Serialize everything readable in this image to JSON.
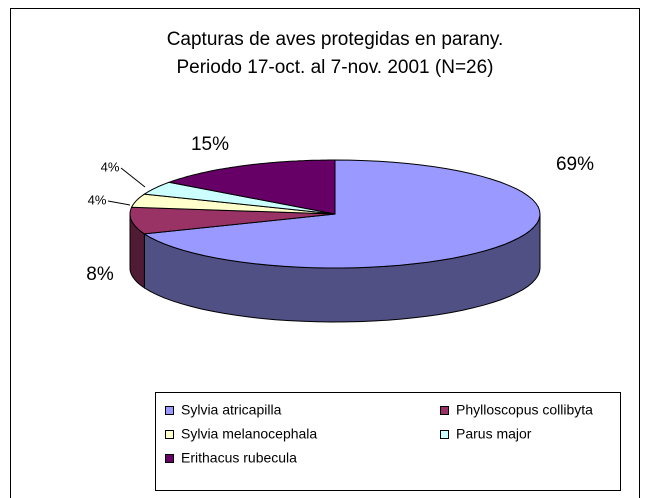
{
  "chart_data": {
    "type": "pie3d",
    "title": [
      "Capturas de aves protegidas en parany.",
      "Periodo 17-oct. al 7-nov. 2001 (N=26)"
    ],
    "categories": [
      "Sylvia atricapilla",
      "Phylloscopus collibyta",
      "Sylvia melanocephala",
      "Parus major",
      "Erithacus rubecula"
    ],
    "values": [
      69,
      8,
      4,
      4,
      15
    ],
    "value_labels": [
      "69%",
      "8%",
      "4%",
      "4%",
      "15%"
    ],
    "colors": [
      "#9999ff",
      "#993366",
      "#ffffcc",
      "#ccffff",
      "#660066"
    ]
  }
}
